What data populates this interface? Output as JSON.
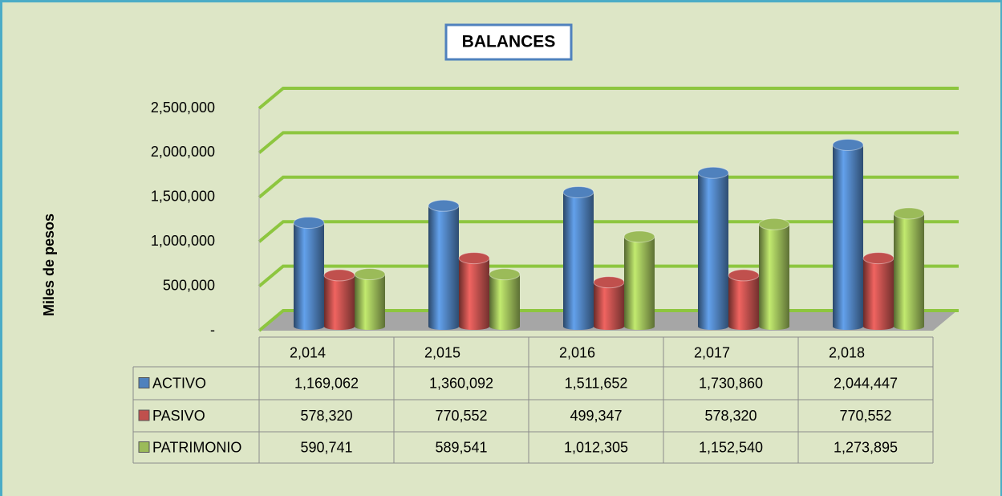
{
  "chart_data": {
    "type": "bar3d",
    "title": "BALANCES",
    "y_label": "Miles de pesos",
    "categories": [
      "2,014",
      "2,015",
      "2,016",
      "2,017",
      "2,018"
    ],
    "series": [
      {
        "name": "ACTIVO",
        "color": "#4f81bd",
        "values": [
          1169062,
          1360092,
          1511652,
          1730860,
          2044447
        ],
        "value_labels": [
          "1,169,062",
          "1,360,092",
          "1,511,652",
          "1,730,860",
          "2,044,447"
        ]
      },
      {
        "name": "PASIVO",
        "color": "#c0504d",
        "values": [
          578320,
          770552,
          499347,
          578320,
          770552
        ],
        "value_labels": [
          "578,320",
          "770,552",
          "499,347",
          "578,320",
          "770,552"
        ]
      },
      {
        "name": "PATRIMONIO",
        "color": "#9bbb59",
        "values": [
          590741,
          589541,
          1012305,
          1152540,
          1273895
        ],
        "value_labels": [
          "590,741",
          "589,541",
          "1,012,305",
          "1,152,540",
          "1,273,895"
        ]
      }
    ],
    "ylim": [
      0,
      2500000
    ],
    "yticks": [
      {
        "value": 0,
        "label": "-"
      },
      {
        "value": 500000,
        "label": "500,000"
      },
      {
        "value": 1000000,
        "label": "1,000,000"
      },
      {
        "value": 1500000,
        "label": "1,500,000"
      },
      {
        "value": 2000000,
        "label": "2,000,000"
      },
      {
        "value": 2500000,
        "label": "2,500,000"
      }
    ],
    "grid": true,
    "grid_color": "#8dc63f",
    "background": "#dde6c6"
  }
}
